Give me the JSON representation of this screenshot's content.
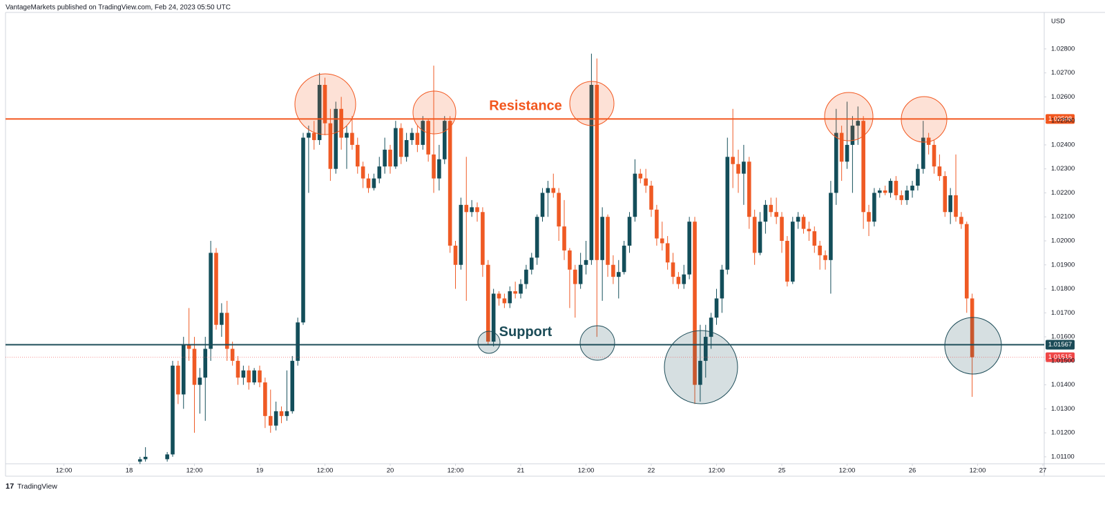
{
  "header": "VantageMarkets published on TradingView.com, Feb 24, 2023 05:50 UTC",
  "footer": "TradingView",
  "chart_data": {
    "type": "candlestick",
    "y_unit": "USD",
    "up_color": "#134e5a",
    "down_color": "#ef5a24",
    "grid": false,
    "xlim": [
      -22.73,
      168.25
    ],
    "ylim": [
      1.01071,
      1.02952
    ],
    "xticks": [
      {
        "value": -12,
        "label": "12:00"
      },
      {
        "value": 0,
        "label": "18"
      },
      {
        "value": 12,
        "label": "12:00"
      },
      {
        "value": 24,
        "label": "19"
      },
      {
        "value": 36,
        "label": "12:00"
      },
      {
        "value": 48,
        "label": "20"
      },
      {
        "value": 60,
        "label": "12:00"
      },
      {
        "value": 72,
        "label": "21"
      },
      {
        "value": 84,
        "label": "12:00"
      },
      {
        "value": 96,
        "label": "22"
      },
      {
        "value": 108,
        "label": "12:00"
      },
      {
        "value": 120,
        "label": "25"
      },
      {
        "value": 132,
        "label": "12:00"
      },
      {
        "value": 144,
        "label": "26"
      },
      {
        "value": 156,
        "label": "12:00"
      },
      {
        "value": 168,
        "label": "27"
      }
    ],
    "yticks": [
      {
        "value": 1.011,
        "label": "1.01100"
      },
      {
        "value": 1.012,
        "label": "1.01200"
      },
      {
        "value": 1.013,
        "label": "1.01300"
      },
      {
        "value": 1.014,
        "label": "1.01400"
      },
      {
        "value": 1.015,
        "label": "1.01500"
      },
      {
        "value": 1.016,
        "label": "1.01600"
      },
      {
        "value": 1.017,
        "label": "1.01700"
      },
      {
        "value": 1.018,
        "label": "1.01800"
      },
      {
        "value": 1.019,
        "label": "1.01900"
      },
      {
        "value": 1.02,
        "label": "1.02000"
      },
      {
        "value": 1.021,
        "label": "1.02100"
      },
      {
        "value": 1.022,
        "label": "1.02200"
      },
      {
        "value": 1.023,
        "label": "1.02300"
      },
      {
        "value": 1.024,
        "label": "1.02400"
      },
      {
        "value": 1.025,
        "label": "1.02500"
      },
      {
        "value": 1.026,
        "label": "1.02600"
      },
      {
        "value": 1.027,
        "label": "1.02700"
      },
      {
        "value": 1.028,
        "label": "1.02800"
      }
    ],
    "levels": [
      {
        "name": "Resistance",
        "value": 1.02508,
        "color": "#f2561d"
      },
      {
        "name": "Support",
        "value": 1.01567,
        "color": "#1b4b57"
      }
    ],
    "last_price": 1.01515,
    "last_price_color": "#ef4747",
    "x": [
      2,
      3,
      7,
      8,
      9,
      10,
      11,
      12,
      13,
      14,
      15,
      16,
      17,
      18,
      19,
      20,
      21,
      22,
      23,
      24,
      25,
      26,
      27,
      28,
      29,
      30,
      31,
      32,
      33,
      34,
      35,
      36,
      37,
      38,
      39,
      40,
      41,
      42,
      43,
      44,
      45,
      46,
      47,
      48,
      49,
      50,
      51,
      52,
      53,
      54,
      55,
      56,
      57,
      58,
      59,
      60,
      61,
      62,
      63,
      64,
      65,
      66,
      67,
      68,
      69,
      70,
      71,
      72,
      73,
      74,
      75,
      76,
      77,
      78,
      79,
      80,
      81,
      82,
      83,
      84,
      85,
      86,
      87,
      88,
      89,
      90,
      91,
      92,
      93,
      94,
      95,
      96,
      97,
      98,
      99,
      100,
      101,
      102,
      103,
      104,
      105,
      106,
      107,
      108,
      109,
      110,
      111,
      112,
      113,
      114,
      115,
      116,
      117,
      118,
      119,
      120,
      121,
      122,
      123,
      124,
      125,
      126,
      127,
      128,
      129,
      130,
      131,
      132,
      133,
      134,
      135,
      136,
      137,
      138,
      139,
      140,
      141,
      142,
      143,
      144,
      145,
      146,
      147,
      148,
      149,
      150,
      151,
      152,
      153,
      154,
      155
    ],
    "open": [
      1.0108,
      1.0109,
      1.0109,
      1.0111,
      1.0148,
      1.0136,
      1.0157,
      1.0155,
      1.014,
      1.0143,
      1.0155,
      1.0195,
      1.0165,
      1.017,
      1.0155,
      1.015,
      1.0143,
      1.0146,
      1.0141,
      1.0146,
      1.0141,
      1.0127,
      1.0123,
      1.0129,
      1.0127,
      1.0129,
      1.015,
      1.0166,
      1.0243,
      1.0245,
      1.0242,
      1.0265,
      1.0249,
      1.023,
      1.0255,
      1.0243,
      1.0245,
      1.024,
      1.0231,
      1.0226,
      1.0222,
      1.0226,
      1.0231,
      1.0238,
      1.0231,
      1.0247,
      1.0235,
      1.0242,
      1.0245,
      1.024,
      1.025,
      1.0236,
      1.0226,
      1.0234,
      1.025,
      1.0198,
      1.019,
      1.0215,
      1.0212,
      1.0214,
      1.0212,
      1.019,
      1.0158,
      1.0178,
      1.0176,
      1.0174,
      1.0179,
      1.0178,
      1.0182,
      1.0188,
      1.0193,
      1.021,
      1.022,
      1.0222,
      1.022,
      1.0206,
      1.0196,
      1.0188,
      1.0182,
      1.019,
      1.0192,
      1.0265,
      1.0192,
      1.021,
      1.019,
      1.0185,
      1.0187,
      1.0198,
      1.021,
      1.0228,
      1.0226,
      1.0223,
      1.0213,
      1.0201,
      1.0199,
      1.0191,
      1.0185,
      1.0182,
      1.0186,
      1.0208,
      1.014,
      1.015,
      1.016,
      1.0168,
      1.0176,
      1.0188,
      1.0235,
      1.0232,
      1.0228,
      1.0233,
      1.021,
      1.0195,
      1.0208,
      1.0215,
      1.0212,
      1.021,
      1.02,
      1.0183,
      1.0208,
      1.021,
      1.0205,
      1.0204,
      1.0198,
      1.0194,
      1.0192,
      1.022,
      1.0245,
      1.0233,
      1.024,
      1.0248,
      1.025,
      1.0212,
      1.0208,
      1.022,
      1.0221,
      1.022,
      1.0225,
      1.0219,
      1.0217,
      1.0221,
      1.0223,
      1.023,
      1.0243,
      1.024,
      1.0231,
      1.0227,
      1.0212,
      1.0219,
      1.021,
      1.0207,
      1.0176
    ],
    "high": [
      1.011,
      1.0114,
      1.0112,
      1.015,
      1.015,
      1.016,
      1.0172,
      1.016,
      1.0147,
      1.016,
      1.02,
      1.0197,
      1.0174,
      1.0175,
      1.0158,
      1.0152,
      1.0148,
      1.0148,
      1.0147,
      1.0148,
      1.0143,
      1.0138,
      1.0133,
      1.0131,
      1.0146,
      1.0152,
      1.0168,
      1.0245,
      1.0248,
      1.025,
      1.027,
      1.0268,
      1.0255,
      1.0258,
      1.026,
      1.0248,
      1.0252,
      1.0243,
      1.0233,
      1.0228,
      1.0228,
      1.0235,
      1.0243,
      1.024,
      1.025,
      1.0249,
      1.0245,
      1.0247,
      1.0248,
      1.0252,
      1.0251,
      1.0273,
      1.024,
      1.0252,
      1.0252,
      1.02,
      1.0218,
      1.0235,
      1.0217,
      1.0216,
      1.0214,
      1.0192,
      1.018,
      1.0179,
      1.0178,
      1.0181,
      1.0183,
      1.0184,
      1.019,
      1.0195,
      1.0211,
      1.0222,
      1.0225,
      1.0228,
      1.0222,
      1.0217,
      1.0197,
      1.019,
      1.0195,
      1.02,
      1.0278,
      1.0276,
      1.0214,
      1.0211,
      1.0194,
      1.0192,
      1.02,
      1.0212,
      1.0234,
      1.023,
      1.023,
      1.0225,
      1.0215,
      1.0208,
      1.0202,
      1.0195,
      1.0187,
      1.019,
      1.021,
      1.021,
      1.0165,
      1.0165,
      1.017,
      1.018,
      1.019,
      1.0243,
      1.0255,
      1.0238,
      1.024,
      1.0235,
      1.0213,
      1.0212,
      1.0217,
      1.0218,
      1.0218,
      1.0212,
      1.0202,
      1.021,
      1.0212,
      1.0211,
      1.0208,
      1.0206,
      1.02,
      1.0196,
      1.0225,
      1.0255,
      1.0248,
      1.0258,
      1.0252,
      1.0256,
      1.0252,
      1.0215,
      1.0222,
      1.0222,
      1.0223,
      1.0226,
      1.0227,
      1.0221,
      1.0223,
      1.0225,
      1.0232,
      1.025,
      1.0245,
      1.0242,
      1.0236,
      1.0229,
      1.0222,
      1.0236,
      1.0212,
      1.0208,
      1.0178
    ],
    "low": [
      1.0107,
      1.0108,
      1.0108,
      1.011,
      1.0132,
      1.013,
      1.015,
      1.012,
      1.0128,
      1.0125,
      1.015,
      1.0163,
      1.016,
      1.015,
      1.0148,
      1.014,
      1.014,
      1.0138,
      1.014,
      1.0139,
      1.0122,
      1.012,
      1.0121,
      1.0124,
      1.0125,
      1.0128,
      1.0148,
      1.0165,
      1.022,
      1.0238,
      1.024,
      1.0244,
      1.0225,
      1.0228,
      1.0238,
      1.023,
      1.0238,
      1.0228,
      1.0222,
      1.022,
      1.0221,
      1.0224,
      1.0228,
      1.0228,
      1.023,
      1.0232,
      1.0233,
      1.024,
      1.0237,
      1.0238,
      1.0233,
      1.022,
      1.0221,
      1.0232,
      1.0195,
      1.018,
      1.0188,
      1.0175,
      1.021,
      1.0208,
      1.0185,
      1.0157,
      1.0156,
      1.0173,
      1.0172,
      1.0172,
      1.0176,
      1.0176,
      1.018,
      1.0186,
      1.019,
      1.0208,
      1.021,
      1.0218,
      1.02,
      1.0192,
      1.0172,
      1.0168,
      1.018,
      1.0186,
      1.019,
      1.016,
      1.0175,
      1.0185,
      1.0182,
      1.0176,
      1.0186,
      1.0195,
      1.0208,
      1.0224,
      1.022,
      1.021,
      1.0198,
      1.0196,
      1.0188,
      1.0182,
      1.018,
      1.018,
      1.0184,
      1.0132,
      1.0133,
      1.0143,
      1.0155,
      1.0165,
      1.017,
      1.0186,
      1.0222,
      1.022,
      1.0215,
      1.0205,
      1.019,
      1.0194,
      1.0203,
      1.021,
      1.0207,
      1.0195,
      1.0181,
      1.0182,
      1.0205,
      1.0203,
      1.02,
      1.0195,
      1.0188,
      1.0188,
      1.0178,
      1.0215,
      1.0225,
      1.023,
      1.022,
      1.024,
      1.0205,
      1.0202,
      1.0206,
      1.0218,
      1.0219,
      1.0218,
      1.0217,
      1.0215,
      1.0215,
      1.0218,
      1.0221,
      1.0228,
      1.0236,
      1.0228,
      1.0225,
      1.021,
      1.0207,
      1.0208,
      1.0205,
      1.017,
      1.0135
    ],
    "close": [
      1.0109,
      1.011,
      1.0111,
      1.0148,
      1.0136,
      1.0157,
      1.0155,
      1.014,
      1.0143,
      1.0155,
      1.0195,
      1.0165,
      1.017,
      1.0155,
      1.015,
      1.0143,
      1.0146,
      1.0141,
      1.0146,
      1.0141,
      1.0127,
      1.0123,
      1.0129,
      1.0127,
      1.0129,
      1.015,
      1.0166,
      1.0243,
      1.0245,
      1.0242,
      1.0265,
      1.0249,
      1.023,
      1.0255,
      1.0243,
      1.0245,
      1.024,
      1.0231,
      1.0226,
      1.0222,
      1.0226,
      1.0231,
      1.0238,
      1.0231,
      1.0247,
      1.0235,
      1.0242,
      1.0245,
      1.024,
      1.025,
      1.0236,
      1.0226,
      1.0234,
      1.025,
      1.0198,
      1.019,
      1.0215,
      1.0212,
      1.0214,
      1.0212,
      1.019,
      1.0158,
      1.0178,
      1.0176,
      1.0174,
      1.0179,
      1.0178,
      1.0182,
      1.0188,
      1.0193,
      1.021,
      1.022,
      1.0222,
      1.022,
      1.0206,
      1.0196,
      1.0188,
      1.0182,
      1.019,
      1.0192,
      1.0265,
      1.0192,
      1.021,
      1.019,
      1.0185,
      1.0187,
      1.0198,
      1.021,
      1.0228,
      1.0226,
      1.0223,
      1.0213,
      1.0201,
      1.0199,
      1.0191,
      1.0185,
      1.0182,
      1.0186,
      1.0208,
      1.014,
      1.015,
      1.016,
      1.0168,
      1.0176,
      1.0188,
      1.0235,
      1.0232,
      1.0228,
      1.0233,
      1.021,
      1.0195,
      1.0208,
      1.0215,
      1.0212,
      1.021,
      1.02,
      1.0183,
      1.0208,
      1.021,
      1.0205,
      1.0204,
      1.0198,
      1.0194,
      1.0192,
      1.022,
      1.0245,
      1.0233,
      1.024,
      1.0248,
      1.025,
      1.0212,
      1.0208,
      1.022,
      1.0221,
      1.022,
      1.0225,
      1.0219,
      1.0217,
      1.0221,
      1.0223,
      1.023,
      1.0243,
      1.024,
      1.0231,
      1.0227,
      1.0212,
      1.0219,
      1.021,
      1.0207,
      1.0176,
      1.01515
    ]
  }
}
